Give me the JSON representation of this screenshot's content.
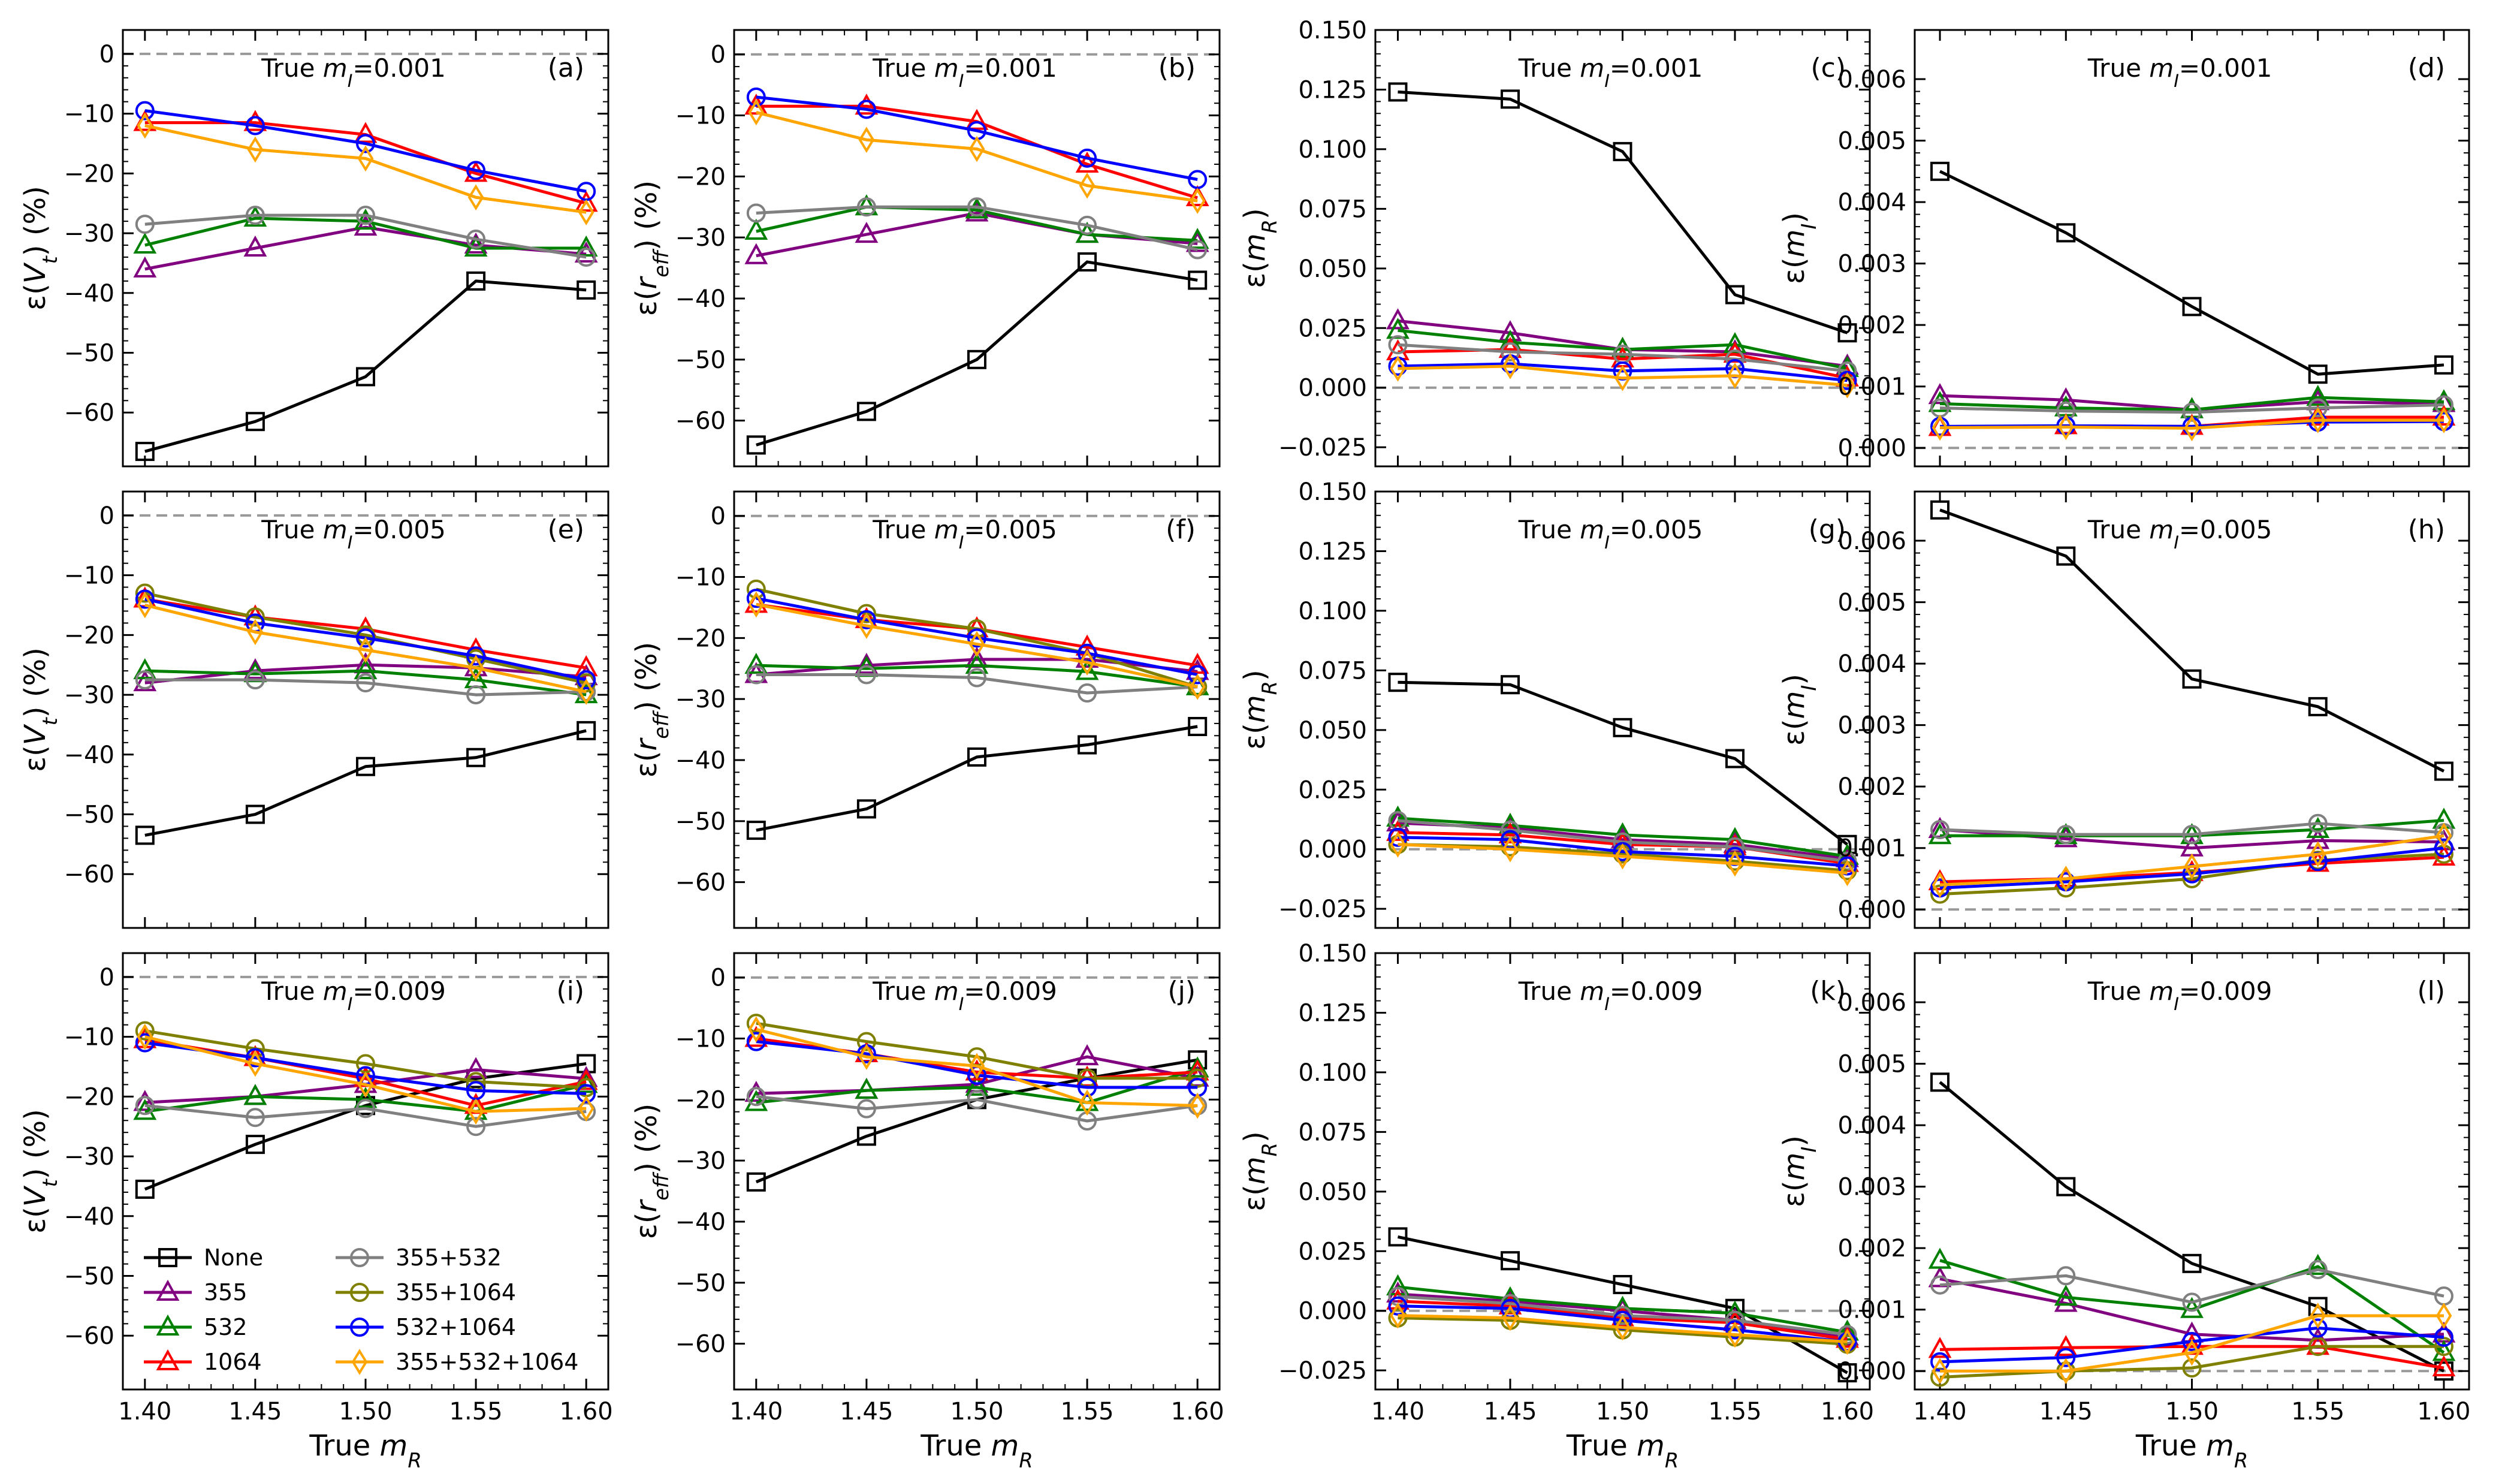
{
  "chart_data": {
    "type": "line",
    "x": [
      1.4,
      1.45,
      1.5,
      1.55,
      1.6
    ],
    "xlabel": "True m_R",
    "xticks": [
      "1.40",
      "1.45",
      "1.50",
      "1.55",
      "1.60"
    ],
    "xlim": [
      1.39,
      1.61
    ],
    "series_styles": [
      {
        "name": "None",
        "color": "#000000",
        "marker": "square"
      },
      {
        "name": "355",
        "color": "#800080",
        "marker": "triangle"
      },
      {
        "name": "532",
        "color": "#008000",
        "marker": "triangle"
      },
      {
        "name": "1064",
        "color": "#ff0000",
        "marker": "triangle"
      },
      {
        "name": "355+532",
        "color": "#808080",
        "marker": "circle"
      },
      {
        "name": "355+1064",
        "color": "#808000",
        "marker": "circle"
      },
      {
        "name": "532+1064",
        "color": "#0000ff",
        "marker": "circle"
      },
      {
        "name": "355+532+1064",
        "color": "#ffa500",
        "marker": "diamond"
      }
    ],
    "legend": {
      "location": "lower-left",
      "panel": "i",
      "columns": 2
    },
    "zero_line": {
      "style": "dashed",
      "color": "#999999"
    },
    "rows": [
      {
        "title_prefix": "True ",
        "title_var": "m",
        "title_sub": "I",
        "title_value": "=0.001"
      },
      {
        "title_prefix": "True ",
        "title_var": "m",
        "title_sub": "I",
        "title_value": "=0.005"
      },
      {
        "title_prefix": "True ",
        "title_var": "m",
        "title_sub": "I",
        "title_value": "=0.009"
      }
    ],
    "columns": [
      {
        "ylabel_prefix": "ε(",
        "ylabel_var": "V",
        "ylabel_sub": "t",
        "ylabel_suffix": ") (%)",
        "ylim": [
          -69,
          4
        ],
        "yticks": [
          0,
          -10,
          -20,
          -30,
          -40,
          -50,
          -60
        ],
        "ytick_labels": [
          "0",
          "−10",
          "−20",
          "−30",
          "−40",
          "−50",
          "−60"
        ]
      },
      {
        "ylabel_prefix": "ε(",
        "ylabel_var": "r",
        "ylabel_sub": "eff",
        "ylabel_suffix": ") (%)",
        "ylim": [
          -67.5,
          4
        ],
        "yticks": [
          0,
          -10,
          -20,
          -30,
          -40,
          -50,
          -60
        ],
        "ytick_labels": [
          "0",
          "−10",
          "−20",
          "−30",
          "−40",
          "−50",
          "−60"
        ]
      },
      {
        "ylabel_prefix": "ε(",
        "ylabel_var": "m",
        "ylabel_sub": "R",
        "ylabel_suffix": ")",
        "ylim": [
          -0.033,
          0.15
        ],
        "yticks": [
          0.15,
          0.125,
          0.1,
          0.075,
          0.05,
          0.025,
          0.0,
          -0.025
        ],
        "ytick_labels": [
          "0.150",
          "0.125",
          "0.100",
          "0.075",
          "0.050",
          "0.025",
          "0.000",
          "−0.025"
        ]
      },
      {
        "ylabel_prefix": "ε(",
        "ylabel_var": "m",
        "ylabel_sub": "I",
        "ylabel_suffix": ")",
        "ylim": [
          -0.0003,
          0.0068
        ],
        "yticks": [
          0.006,
          0.005,
          0.004,
          0.003,
          0.002,
          0.001,
          0.0
        ],
        "ytick_labels": [
          "0.006",
          "0.005",
          "0.004",
          "0.003",
          "0.002",
          "0.001",
          "0.000"
        ]
      }
    ],
    "panels": [
      {
        "label": "(a)",
        "row": 0,
        "col": 0,
        "series": [
          [
            -66.5,
            -61.5,
            -54,
            -38,
            -39.5
          ],
          [
            -36,
            -32.5,
            -29,
            -32,
            -33.5
          ],
          [
            -32,
            -27.5,
            -28,
            -32.5,
            -32.5
          ],
          [
            -11.5,
            -11.5,
            -13.5,
            -20,
            -25
          ],
          [
            -28.5,
            -27,
            -27,
            -31,
            -34
          ],
          null,
          [
            -9.5,
            -12,
            -15,
            -19.5,
            -23
          ],
          [
            -12,
            -16,
            -17.5,
            -24,
            -26.5
          ]
        ]
      },
      {
        "label": "(b)",
        "row": 0,
        "col": 1,
        "series": [
          [
            -64,
            -58.5,
            -50,
            -34,
            -37
          ],
          [
            -33,
            -29.5,
            -26,
            -29.5,
            -31
          ],
          [
            -29,
            -25,
            -25.5,
            -29.5,
            -30.5
          ],
          [
            -8.5,
            -8.5,
            -11,
            -18,
            -23.5
          ],
          [
            -26,
            -25,
            -25,
            -28,
            -32
          ],
          null,
          [
            -7,
            -9,
            -12.5,
            -17,
            -20.5
          ],
          [
            -9.5,
            -14,
            -15.5,
            -21.5,
            -24
          ]
        ]
      },
      {
        "label": "(c)",
        "row": 0,
        "col": 2,
        "series": [
          [
            0.124,
            0.121,
            0.099,
            0.039,
            0.023
          ],
          [
            0.028,
            0.023,
            0.016,
            0.015,
            0.009
          ],
          [
            0.024,
            0.019,
            0.016,
            0.018,
            0.008
          ],
          [
            0.015,
            0.016,
            0.012,
            0.014,
            0.004
          ],
          [
            0.018,
            0.015,
            0.014,
            0.012,
            0.007
          ],
          null,
          [
            0.009,
            0.01,
            0.007,
            0.008,
            0.003
          ],
          [
            0.008,
            0.009,
            0.004,
            0.005,
            0.001
          ]
        ]
      },
      {
        "label": "(d)",
        "row": 0,
        "col": 3,
        "series": [
          [
            0.0045,
            0.0035,
            0.0023,
            0.0012,
            0.00135
          ],
          [
            0.00085,
            0.00078,
            0.00062,
            0.00075,
            0.00072
          ],
          [
            0.00072,
            0.00065,
            0.00062,
            0.00082,
            0.00075
          ],
          [
            0.00033,
            0.00036,
            0.00035,
            0.0005,
            0.0005
          ],
          [
            0.00065,
            0.0006,
            0.00058,
            0.00065,
            0.0007
          ],
          null,
          [
            0.00035,
            0.00036,
            0.00035,
            0.00042,
            0.00043
          ],
          [
            0.00033,
            0.00034,
            0.00032,
            0.00045,
            0.00045
          ]
        ]
      },
      {
        "label": "(e)",
        "row": 1,
        "col": 0,
        "series": [
          [
            -53.5,
            -50,
            -42,
            -40.5,
            -36
          ],
          [
            -28,
            -26,
            -25,
            -25.5,
            -27
          ],
          [
            -26,
            -26.5,
            -26,
            -27.5,
            -30
          ],
          [
            -14,
            -17,
            -19,
            -22.5,
            -25.5
          ],
          [
            -27.5,
            -27.5,
            -28,
            -30,
            -29.5
          ],
          [
            -13,
            -17,
            -20,
            -24,
            -28
          ],
          [
            -14,
            -18,
            -20.5,
            -23.5,
            -27.5
          ],
          [
            -15,
            -19.5,
            -22.5,
            -25.5,
            -29.5
          ]
        ]
      },
      {
        "label": "(f)",
        "row": 1,
        "col": 1,
        "series": [
          [
            -51.5,
            -48,
            -39.5,
            -37.5,
            -34.5
          ],
          [
            -26,
            -24.5,
            -23.5,
            -23.5,
            -25.5
          ],
          [
            -24.5,
            -25,
            -24.5,
            -25.5,
            -28
          ],
          [
            -14.5,
            -17,
            -18.5,
            -21.5,
            -24.5
          ],
          [
            -26,
            -26,
            -26.5,
            -29,
            -28
          ],
          [
            -12,
            -16,
            -18.5,
            -22.5,
            -28
          ],
          [
            -13.5,
            -17,
            -20,
            -22.5,
            -26
          ],
          [
            -14.5,
            -18,
            -21,
            -24,
            -28
          ]
        ]
      },
      {
        "label": "(g)",
        "row": 1,
        "col": 2,
        "series": [
          [
            0.07,
            0.069,
            0.051,
            0.038,
            0.002
          ],
          [
            0.011,
            0.009,
            0.004,
            0.002,
            -0.004
          ],
          [
            0.013,
            0.01,
            0.006,
            0.004,
            -0.003
          ],
          [
            0.007,
            0.006,
            0.002,
            0.001,
            -0.006
          ],
          [
            0.012,
            0.008,
            0.003,
            0.001,
            -0.005
          ],
          [
            0.002,
            0.001,
            -0.002,
            -0.005,
            -0.009
          ],
          [
            0.005,
            0.004,
            -0.001,
            -0.003,
            -0.007
          ],
          [
            0.002,
            0.0,
            -0.003,
            -0.006,
            -0.01
          ]
        ]
      },
      {
        "label": "(h)",
        "row": 1,
        "col": 3,
        "series": [
          [
            0.0065,
            0.00575,
            0.00375,
            0.0033,
            0.00225
          ],
          [
            0.0013,
            0.00115,
            0.001,
            0.00112,
            0.0011
          ],
          [
            0.0012,
            0.0012,
            0.0012,
            0.0013,
            0.00145
          ],
          [
            0.00045,
            0.0005,
            0.0006,
            0.00075,
            0.00085
          ],
          [
            0.0013,
            0.00122,
            0.00122,
            0.0014,
            0.00125
          ],
          [
            0.00025,
            0.00035,
            0.0005,
            0.0008,
            0.0009
          ],
          [
            0.00035,
            0.00045,
            0.00058,
            0.00078,
            0.001
          ],
          [
            0.0004,
            0.0005,
            0.0007,
            0.0009,
            0.0012
          ]
        ]
      },
      {
        "label": "(i)",
        "row": 2,
        "col": 0,
        "series": [
          [
            -35.5,
            -28,
            -21.5,
            -17,
            -14.5
          ],
          [
            -21,
            -20,
            -18,
            -15.5,
            -17
          ],
          [
            -22.5,
            -20,
            -20.5,
            -22.5,
            -18
          ],
          [
            -10.5,
            -13.5,
            -17,
            -21.5,
            -17.5
          ],
          [
            -21.5,
            -23.5,
            -22,
            -25,
            -22.5
          ],
          [
            -9,
            -12,
            -14.5,
            -17.5,
            -18.5
          ],
          [
            -11,
            -13.5,
            -16.5,
            -19,
            -19.5
          ],
          [
            -10,
            -14.5,
            -18,
            -22.5,
            -22
          ]
        ]
      },
      {
        "label": "(j)",
        "row": 2,
        "col": 1,
        "series": [
          [
            -33.5,
            -26,
            -20,
            -16.5,
            -13.5
          ],
          [
            -19,
            -18.5,
            -17.5,
            -13,
            -16.5
          ],
          [
            -20.5,
            -18.5,
            -18,
            -20.5,
            -15
          ],
          [
            -10,
            -12.5,
            -15.5,
            -16.5,
            -15.5
          ],
          [
            -19.5,
            -21.5,
            -20,
            -23.5,
            -21
          ],
          [
            -7.5,
            -10.5,
            -13,
            -16.5,
            -16.5
          ],
          [
            -10.5,
            -12.5,
            -16,
            -18,
            -18
          ],
          [
            -8.5,
            -13,
            -14.5,
            -20.5,
            -21
          ]
        ]
      },
      {
        "label": "(k)",
        "row": 2,
        "col": 2,
        "series": [
          [
            0.031,
            0.021,
            0.011,
            0.001,
            -0.026
          ],
          [
            0.007,
            0.004,
            0.0,
            -0.004,
            -0.011
          ],
          [
            0.01,
            0.005,
            0.001,
            -0.001,
            -0.009
          ],
          [
            0.004,
            0.002,
            -0.003,
            -0.005,
            -0.012
          ],
          [
            0.006,
            0.003,
            -0.002,
            -0.004,
            -0.01
          ],
          [
            -0.003,
            -0.004,
            -0.008,
            -0.011,
            -0.014
          ],
          [
            0.002,
            0.001,
            -0.004,
            -0.008,
            -0.013
          ],
          [
            -0.002,
            -0.003,
            -0.007,
            -0.01,
            -0.013
          ]
        ]
      },
      {
        "label": "(l)",
        "row": 2,
        "col": 3,
        "series": [
          [
            0.0047,
            0.003,
            0.00175,
            0.00105,
            0.0
          ],
          [
            0.0015,
            0.0011,
            0.0006,
            0.0005,
            0.0006
          ],
          [
            0.0018,
            0.0012,
            0.001,
            0.0017,
            0.0003
          ],
          [
            0.00035,
            0.00038,
            0.0004,
            0.0004,
            5e-05
          ],
          [
            0.0014,
            0.00155,
            0.00112,
            0.00165,
            0.00122
          ],
          [
            -0.0001,
            0.0,
            5e-05,
            0.0004,
            0.0004
          ],
          [
            0.00015,
            0.00022,
            0.00048,
            0.0007,
            0.00055
          ],
          [
            0.0,
            0.0,
            0.0003,
            0.0009,
            0.0009
          ]
        ]
      }
    ]
  }
}
